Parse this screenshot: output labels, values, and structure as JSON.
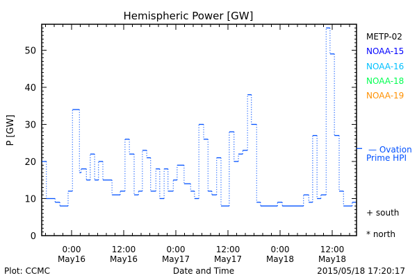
{
  "chart_data": {
    "type": "line",
    "title": "Hemispheric Power [GW]",
    "xlabel": "Date and Time",
    "ylabel": "P [GW]",
    "ylim": [
      0,
      57
    ],
    "xlim_hours_from_May16_0000": [
      -6.9,
      65.5
    ],
    "yticks": [
      0,
      10,
      20,
      30,
      40,
      50
    ],
    "xticks": [
      {
        "h": 0,
        "time": "0:00",
        "date": "May16"
      },
      {
        "h": 12,
        "time": "12:00",
        "date": "May16"
      },
      {
        "h": 24,
        "time": "0:00",
        "date": "May17"
      },
      {
        "h": 36,
        "time": "12:00",
        "date": "May17"
      },
      {
        "h": 48,
        "time": "0:00",
        "date": "May18"
      },
      {
        "h": 60,
        "time": "12:00",
        "date": "May18"
      }
    ],
    "series": [
      {
        "name": "Ovation Prime HPI",
        "color": "#0050ff",
        "style": "step",
        "end_hour": 65.4,
        "steps": [
          [
            -6.8,
            20
          ],
          [
            -5.8,
            10
          ],
          [
            -3.8,
            9
          ],
          [
            -2.7,
            8
          ],
          [
            -0.8,
            12
          ],
          [
            0.2,
            34
          ],
          [
            1.8,
            17
          ],
          [
            2.2,
            18
          ],
          [
            3.4,
            15
          ],
          [
            4.3,
            22
          ],
          [
            5.3,
            15
          ],
          [
            6.2,
            20
          ],
          [
            7.2,
            15
          ],
          [
            9.3,
            11
          ],
          [
            11.2,
            12
          ],
          [
            12.3,
            26
          ],
          [
            13.3,
            22
          ],
          [
            14.4,
            11
          ],
          [
            15.4,
            12
          ],
          [
            16.3,
            23
          ],
          [
            17.3,
            21
          ],
          [
            18.2,
            12
          ],
          [
            19.4,
            18
          ],
          [
            20.3,
            10
          ],
          [
            21.3,
            18
          ],
          [
            22.2,
            12
          ],
          [
            23.4,
            15
          ],
          [
            24.3,
            19
          ],
          [
            25.9,
            14
          ],
          [
            27.4,
            12
          ],
          [
            28.3,
            10
          ],
          [
            29.3,
            30
          ],
          [
            30.4,
            26
          ],
          [
            31.4,
            12
          ],
          [
            32.3,
            11
          ],
          [
            33.4,
            21
          ],
          [
            34.4,
            8
          ],
          [
            36.3,
            28
          ],
          [
            37.4,
            20
          ],
          [
            38.4,
            22
          ],
          [
            39.4,
            23
          ],
          [
            40.5,
            38
          ],
          [
            41.4,
            30
          ],
          [
            42.6,
            9
          ],
          [
            43.5,
            8
          ],
          [
            47.4,
            9
          ],
          [
            48.5,
            8
          ],
          [
            53.4,
            11
          ],
          [
            54.6,
            9
          ],
          [
            55.5,
            27
          ],
          [
            56.5,
            10
          ],
          [
            57.4,
            11
          ],
          [
            58.6,
            56
          ],
          [
            59.5,
            49
          ],
          [
            60.5,
            27
          ],
          [
            61.6,
            12
          ],
          [
            62.6,
            8
          ],
          [
            64.6,
            9
          ]
        ]
      }
    ],
    "hpi_marker_value": 23.5,
    "legend": {
      "satellites": [
        {
          "name": "METP-02",
          "color": "#000000"
        },
        {
          "name": "NOAA-15",
          "color": "#0000ff"
        },
        {
          "name": "NOAA-16",
          "color": "#00c0ff"
        },
        {
          "name": "NOAA-18",
          "color": "#00ff50"
        },
        {
          "name": "NOAA-19",
          "color": "#ff9000"
        }
      ],
      "hpi_line1": "— Ovation",
      "hpi_line2": "Prime HPI",
      "south": "+ south",
      "north": "* north",
      "placement": "right"
    }
  },
  "footer": {
    "left": "Plot: CCMC",
    "right": "2015/05/18 17:20:17"
  }
}
